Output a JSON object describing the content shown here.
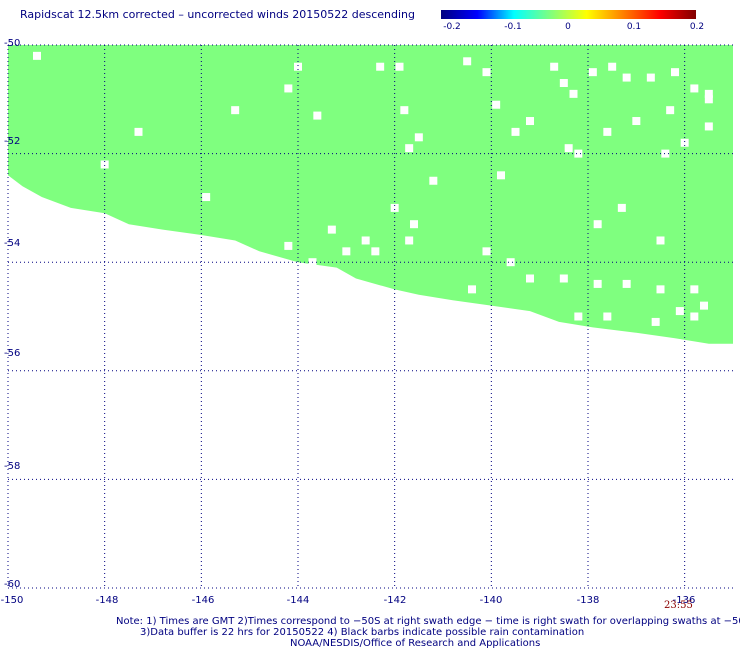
{
  "title": "Rapidscat 12.5km corrected – uncorrected winds 20150522 descending",
  "colorbar": {
    "labels": [
      "-0.2",
      "-0.1",
      "0",
      "0.1",
      "0.2"
    ],
    "min": -0.2,
    "max": 0.2,
    "colors": [
      "#000080",
      "#0000ff",
      "#00ffff",
      "#7fff7f",
      "#ffff00",
      "#ff8000",
      "#ff0000",
      "#800000"
    ]
  },
  "chart_data": {
    "type": "heatmap",
    "xlim": [
      -150,
      -135
    ],
    "ylim": [
      -60,
      -50
    ],
    "x_ticks": [
      -150,
      -148,
      -146,
      -144,
      -142,
      -140,
      -138,
      -136
    ],
    "x_tick_labels": [
      "-150",
      "-148",
      "-146",
      "-144",
      "-142",
      "-140",
      "-138",
      "-136"
    ],
    "y_ticks": [
      -50,
      -52,
      -54,
      -56,
      -58,
      -60
    ],
    "y_tick_labels": [
      "-50",
      "-52",
      "-54",
      "-56",
      "-58",
      "-60"
    ],
    "grid": true,
    "field_value": 0,
    "field_color": "#7fff7f",
    "swath_boundary": [
      [
        -150,
        -52.4
      ],
      [
        -149.7,
        -52.6
      ],
      [
        -149.3,
        -52.8
      ],
      [
        -148.7,
        -53.0
      ],
      [
        -148.0,
        -53.1
      ],
      [
        -147.5,
        -53.3
      ],
      [
        -146.8,
        -53.4
      ],
      [
        -146.0,
        -53.5
      ],
      [
        -145.3,
        -53.6
      ],
      [
        -144.8,
        -53.8
      ],
      [
        -144.0,
        -54.0
      ],
      [
        -143.2,
        -54.1
      ],
      [
        -142.8,
        -54.3
      ],
      [
        -142.0,
        -54.5
      ],
      [
        -141.5,
        -54.6
      ],
      [
        -140.8,
        -54.7
      ],
      [
        -140.0,
        -54.8
      ],
      [
        -139.2,
        -54.9
      ],
      [
        -138.6,
        -55.1
      ],
      [
        -137.9,
        -55.2
      ],
      [
        -137.0,
        -55.3
      ],
      [
        -136.2,
        -55.4
      ],
      [
        -135.5,
        -55.5
      ],
      [
        -135.0,
        -55.5
      ]
    ],
    "missing_cells": [
      [
        -149.4,
        -50.2
      ],
      [
        -147.3,
        -51.6
      ],
      [
        -148.0,
        -52.2
      ],
      [
        -145.3,
        -51.2
      ],
      [
        -144.0,
        -50.4
      ],
      [
        -144.2,
        -50.8
      ],
      [
        -143.6,
        -51.3
      ],
      [
        -142.3,
        -50.4
      ],
      [
        -141.9,
        -50.4
      ],
      [
        -141.8,
        -51.2
      ],
      [
        -141.7,
        -51.9
      ],
      [
        -141.5,
        -51.7
      ],
      [
        -140.5,
        -50.3
      ],
      [
        -140.1,
        -50.5
      ],
      [
        -139.9,
        -51.1
      ],
      [
        -139.5,
        -51.6
      ],
      [
        -139.2,
        -51.4
      ],
      [
        -138.7,
        -50.4
      ],
      [
        -138.5,
        -50.7
      ],
      [
        -138.3,
        -50.9
      ],
      [
        -137.9,
        -50.5
      ],
      [
        -137.5,
        -50.4
      ],
      [
        -137.2,
        -50.6
      ],
      [
        -136.7,
        -50.6
      ],
      [
        -136.2,
        -50.5
      ],
      [
        -135.8,
        -50.8
      ],
      [
        -135.5,
        -50.9
      ],
      [
        -135.5,
        -51.0
      ],
      [
        -136.3,
        -51.2
      ],
      [
        -137.0,
        -51.4
      ],
      [
        -137.6,
        -51.6
      ],
      [
        -138.4,
        -51.9
      ],
      [
        -138.2,
        -52.0
      ],
      [
        -141.2,
        -52.5
      ],
      [
        -141.7,
        -53.6
      ],
      [
        -142.4,
        -53.8
      ],
      [
        -143.0,
        -53.8
      ],
      [
        -143.7,
        -54.0
      ],
      [
        -144.2,
        -53.7
      ],
      [
        -145.9,
        -52.8
      ],
      [
        -140.1,
        -53.8
      ],
      [
        -139.6,
        -54.0
      ],
      [
        -139.2,
        -54.3
      ],
      [
        -138.5,
        -54.3
      ],
      [
        -137.8,
        -54.4
      ],
      [
        -137.2,
        -54.4
      ],
      [
        -136.5,
        -54.5
      ],
      [
        -135.8,
        -54.5
      ],
      [
        -135.6,
        -54.8
      ],
      [
        -135.8,
        -55.0
      ],
      [
        -136.1,
        -54.9
      ],
      [
        -137.6,
        -55.0
      ],
      [
        -138.2,
        -55.0
      ],
      [
        -136.6,
        -55.1
      ],
      [
        -140.4,
        -54.5
      ],
      [
        -142.6,
        -53.6
      ],
      [
        -143.3,
        -53.4
      ],
      [
        -141.6,
        -53.3
      ],
      [
        -142.0,
        -53.0
      ],
      [
        -139.8,
        -52.4
      ],
      [
        -136.4,
        -52.0
      ],
      [
        -136.0,
        -51.8
      ],
      [
        -135.5,
        -51.5
      ],
      [
        -136.5,
        -53.6
      ],
      [
        -137.3,
        -53.0
      ],
      [
        -137.8,
        -53.3
      ]
    ]
  },
  "timestamp": "23:55",
  "notes": [
    "Note: 1) Times are GMT 2)Times correspond to −50S at right swath edge − time is right swath for overlapping swaths at −50S",
    "3)Data buffer is 22 hrs for 20150522 4) Black barbs indicate possible rain contamination",
    "NOAA/NESDIS/Office of Research and Applications"
  ]
}
